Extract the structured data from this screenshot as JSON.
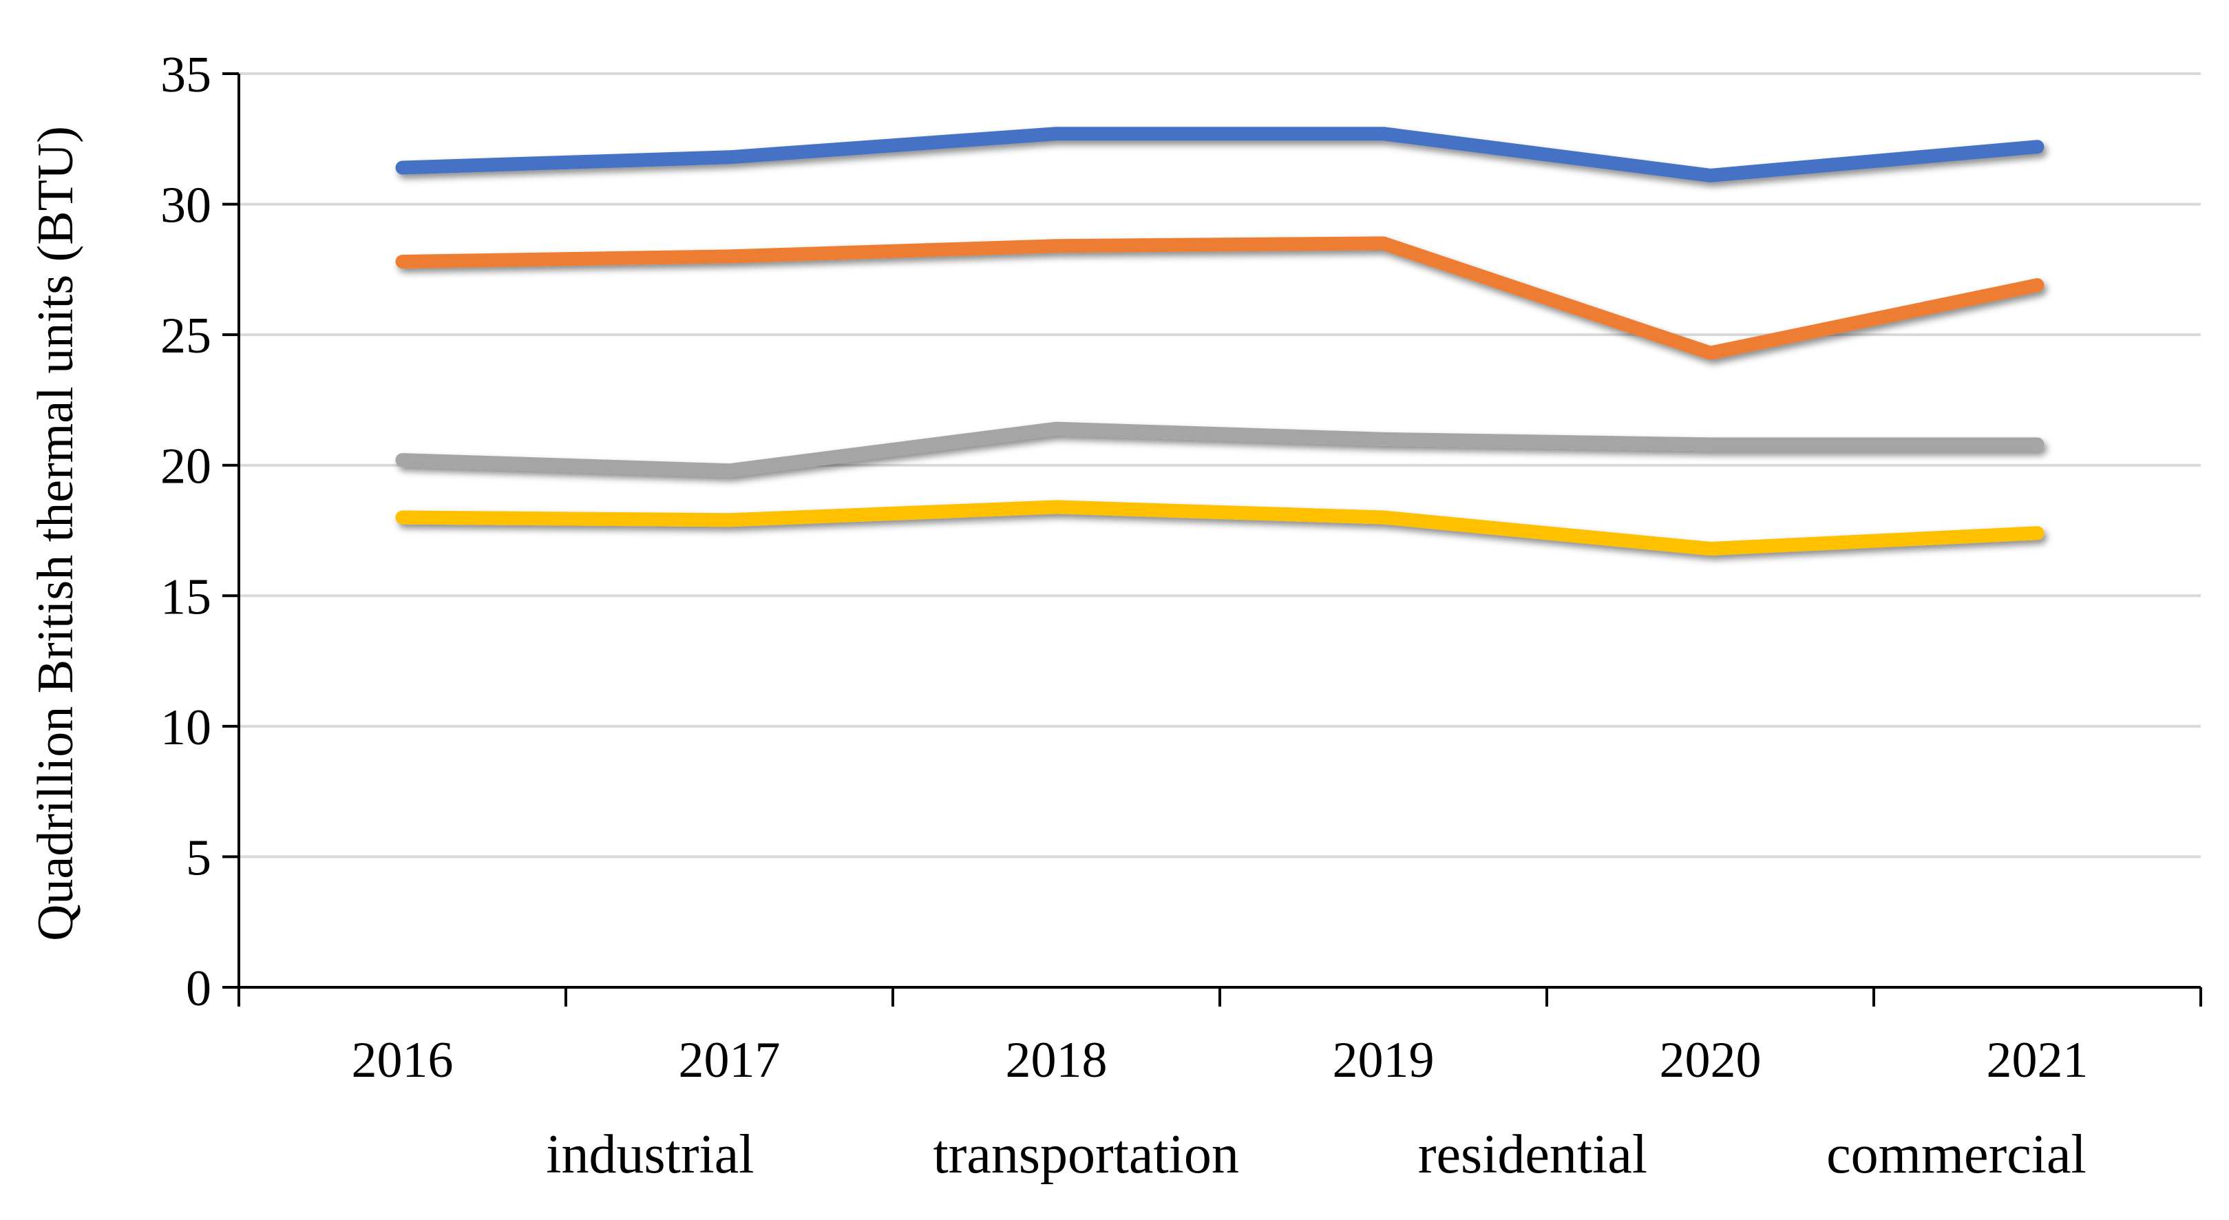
{
  "chart_data": {
    "type": "line",
    "title": "",
    "xlabel": "",
    "ylabel": "Quadrillion British thermal units (BTU)",
    "categories": [
      "2016",
      "2017",
      "2018",
      "2019",
      "2020",
      "2021"
    ],
    "ylim": [
      0,
      35
    ],
    "yticks": [
      "0",
      "5",
      "10",
      "15",
      "20",
      "25",
      "30",
      "35"
    ],
    "grid": true,
    "legend_position": "bottom",
    "series": [
      {
        "name": "industrial",
        "color": "#4472C4",
        "values": [
          31.4,
          31.8,
          32.7,
          32.7,
          31.1,
          32.2
        ]
      },
      {
        "name": "transportation",
        "color": "#ED7D31",
        "values": [
          27.8,
          28.0,
          28.4,
          28.5,
          24.3,
          26.9
        ]
      },
      {
        "name": "residential",
        "color": "#A5A5A5",
        "values": [
          20.2,
          19.8,
          21.4,
          21.0,
          20.8,
          20.8
        ]
      },
      {
        "name": "commercial",
        "color": "#FFC000",
        "values": [
          18.0,
          17.9,
          18.4,
          18.0,
          16.8,
          17.4
        ]
      }
    ]
  }
}
